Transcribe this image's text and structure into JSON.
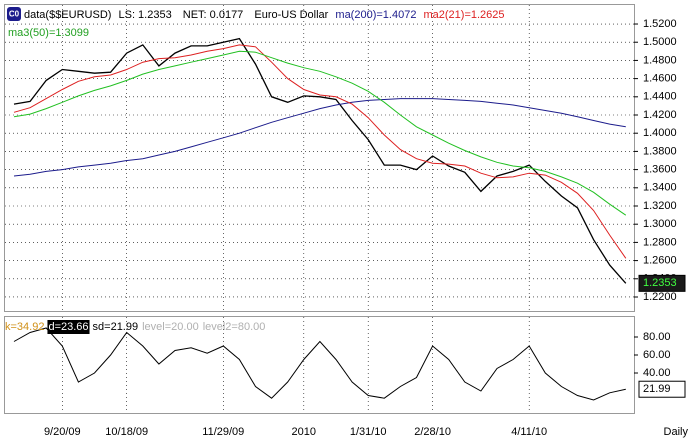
{
  "chart_data": [
    {
      "type": "line",
      "categories": [
        null,
        null,
        null,
        "9/20/09",
        null,
        null,
        null,
        "10/18/09",
        null,
        null,
        null,
        null,
        null,
        "11/29/09",
        null,
        null,
        null,
        null,
        "2010",
        null,
        null,
        null,
        "1/31/10",
        null,
        null,
        null,
        "2/28/10",
        null,
        null,
        null,
        null,
        null,
        "4/11/10",
        null,
        null,
        null,
        null,
        null,
        null
      ],
      "ylim": [
        1.2035,
        1.5409
      ],
      "yticks": [
        {
          "value": 1.22,
          "label": "1.2200"
        },
        {
          "value": 1.24,
          "label": "1.2400"
        },
        {
          "value": 1.26,
          "label": "1.2600"
        },
        {
          "value": 1.28,
          "label": "1.2800"
        },
        {
          "value": 1.3,
          "label": "1.3000"
        },
        {
          "value": 1.32,
          "label": "1.3200"
        },
        {
          "value": 1.34,
          "label": "1.3400"
        },
        {
          "value": 1.36,
          "label": "1.3600"
        },
        {
          "value": 1.38,
          "label": "1.3800"
        },
        {
          "value": 1.4,
          "label": "1.4000"
        },
        {
          "value": 1.42,
          "label": "1.4200"
        },
        {
          "value": 1.44,
          "label": "1.4400"
        },
        {
          "value": 1.46,
          "label": "1.4600"
        },
        {
          "value": 1.48,
          "label": "1.4800"
        },
        {
          "value": 1.5,
          "label": "1.5000"
        },
        {
          "value": 1.52,
          "label": "1.5200"
        }
      ],
      "grid": true,
      "annotations": [
        "LS: 1.2353",
        "NET: 0.0177",
        "Euro-US Dollar"
      ],
      "last_value_label": "1.2353",
      "periodicity": "Daily",
      "series": [
        {
          "name": "data($$EURUSD)",
          "color": "#000000",
          "values": [
            1.432,
            1.435,
            1.458,
            1.47,
            1.468,
            1.466,
            1.467,
            1.488,
            1.497,
            1.474,
            1.488,
            1.496,
            1.496,
            1.5,
            1.504,
            1.476,
            1.44,
            1.434,
            1.441,
            1.44,
            1.437,
            1.414,
            1.393,
            1.365,
            1.365,
            1.36,
            1.375,
            1.364,
            1.357,
            1.336,
            1.353,
            1.358,
            1.365,
            1.347,
            1.331,
            1.318,
            1.283,
            1.255,
            1.235
          ]
        },
        {
          "name": "ma(200)=1.4072",
          "color": "#1c1c8c",
          "values": [
            1.353,
            1.355,
            1.358,
            1.36,
            1.363,
            1.365,
            1.367,
            1.37,
            1.372,
            1.376,
            1.38,
            1.385,
            1.39,
            1.395,
            1.4,
            1.406,
            1.412,
            1.417,
            1.422,
            1.427,
            1.431,
            1.434,
            1.436,
            1.437,
            1.438,
            1.438,
            1.438,
            1.437,
            1.436,
            1.435,
            1.433,
            1.431,
            1.428,
            1.425,
            1.422,
            1.418,
            1.414,
            1.41,
            1.407
          ]
        },
        {
          "name": "ma2(21)=1.2625",
          "color": "#dd2020",
          "values": [
            1.423,
            1.428,
            1.438,
            1.448,
            1.457,
            1.462,
            1.464,
            1.47,
            1.478,
            1.482,
            1.483,
            1.486,
            1.49,
            1.493,
            1.497,
            1.495,
            1.478,
            1.46,
            1.448,
            1.442,
            1.44,
            1.432,
            1.417,
            1.398,
            1.382,
            1.372,
            1.367,
            1.366,
            1.364,
            1.356,
            1.351,
            1.352,
            1.356,
            1.354,
            1.346,
            1.334,
            1.315,
            1.288,
            1.2625
          ]
        },
        {
          "name": "ma3(50)=1.3099",
          "color": "#22c022",
          "values": [
            1.418,
            1.421,
            1.427,
            1.434,
            1.441,
            1.447,
            1.452,
            1.458,
            1.465,
            1.47,
            1.474,
            1.478,
            1.482,
            1.486,
            1.49,
            1.489,
            1.483,
            1.477,
            1.472,
            1.468,
            1.462,
            1.455,
            1.446,
            1.434,
            1.42,
            1.407,
            1.398,
            1.389,
            1.381,
            1.374,
            1.368,
            1.364,
            1.362,
            1.358,
            1.352,
            1.345,
            1.335,
            1.322,
            1.3099
          ]
        }
      ]
    },
    {
      "type": "line",
      "ylim": [
        -4.4,
        102.2
      ],
      "yticks": [
        {
          "value": 40,
          "label": "40.00"
        },
        {
          "value": 60,
          "label": "60.00"
        },
        {
          "value": 80,
          "label": "80.00"
        }
      ],
      "annotations": [
        {
          "text": "k=34.92",
          "color": "#d09018"
        },
        {
          "text": "d=23.66",
          "color": "#ffffff",
          "background": "#000000"
        },
        {
          "text": "level=20.00",
          "color": "#b0b0b0"
        },
        {
          "text": "level2=80.00",
          "color": "#b0b0b0"
        }
      ],
      "last_value_label": "21.99",
      "series": [
        {
          "name": "sd=21.99",
          "color": "#000000",
          "values": [
            75,
            85,
            90,
            70,
            30,
            40,
            60,
            85,
            70,
            50,
            65,
            68,
            62,
            70,
            55,
            25,
            12,
            30,
            55,
            75,
            55,
            30,
            15,
            12,
            25,
            35,
            70,
            55,
            30,
            20,
            45,
            55,
            70,
            40,
            25,
            15,
            10,
            18,
            22
          ]
        }
      ]
    }
  ]
}
